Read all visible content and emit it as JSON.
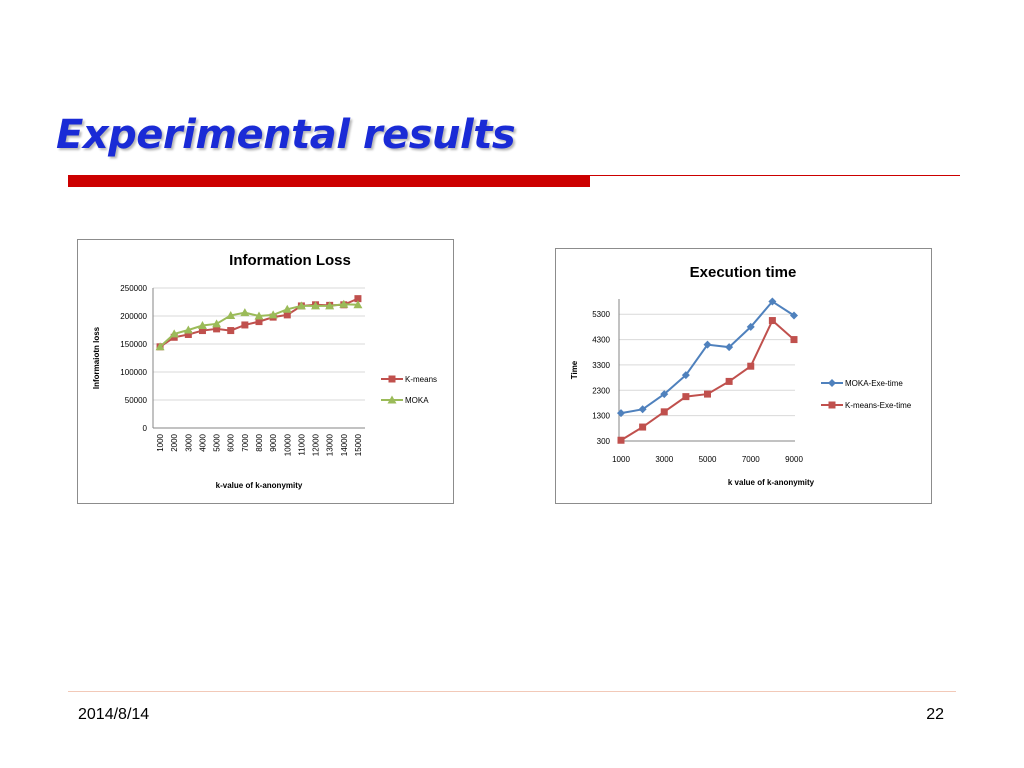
{
  "slide": {
    "title": "Experimental results",
    "footer_date": "2014/8/14",
    "page_number": "22",
    "title_color": "#1a2bd6",
    "accent_color": "#cc0000"
  },
  "chart_data": [
    {
      "type": "line",
      "title": "Information Loss",
      "xlabel": "k-value of k-anonymity",
      "ylabel": "Informaiotn loss",
      "categories": [
        "1000",
        "2000",
        "3000",
        "4000",
        "5000",
        "6000",
        "7000",
        "8000",
        "9000",
        "10000",
        "11000",
        "12000",
        "13000",
        "14000",
        "15000"
      ],
      "y_ticks": [
        "0",
        "50000",
        "100000",
        "150000",
        "200000",
        "250000"
      ],
      "ylim": [
        0,
        250000
      ],
      "series": [
        {
          "name": "K-means",
          "marker": "square",
          "color": "#c0504d",
          "values": [
            145000,
            162000,
            167000,
            174000,
            177000,
            174000,
            184000,
            190000,
            198000,
            202000,
            218000,
            220000,
            219000,
            220000,
            231000
          ]
        },
        {
          "name": "MOKA",
          "marker": "triangle",
          "color": "#9bbb59",
          "values": [
            145000,
            168000,
            175000,
            183000,
            186000,
            201000,
            206000,
            200000,
            202000,
            212000,
            218000,
            218000,
            218000,
            221000,
            220000
          ]
        }
      ],
      "legend": "right",
      "grid": true
    },
    {
      "type": "line",
      "title": "Execution time",
      "xlabel": "k value of k-anonymity",
      "ylabel": "Time",
      "x": [
        1000,
        2000,
        3000,
        4000,
        5000,
        6000,
        7000,
        8000,
        9000
      ],
      "x_ticks": [
        "1000",
        "3000",
        "5000",
        "7000",
        "9000"
      ],
      "y_ticks": [
        "300",
        "1300",
        "2300",
        "3300",
        "4300",
        "5300"
      ],
      "ylim": [
        300,
        5900
      ],
      "series": [
        {
          "name": "MOKA-Exe-time",
          "marker": "diamond",
          "color": "#4f81bd",
          "values": [
            1400,
            1550,
            2150,
            2900,
            4100,
            4000,
            4800,
            5800,
            5250
          ]
        },
        {
          "name": "K-means-Exe-time",
          "marker": "square",
          "color": "#c0504d",
          "values": [
            330,
            850,
            1450,
            2050,
            2150,
            2650,
            3250,
            5050,
            4300
          ]
        }
      ],
      "legend": "right",
      "grid": true
    }
  ]
}
